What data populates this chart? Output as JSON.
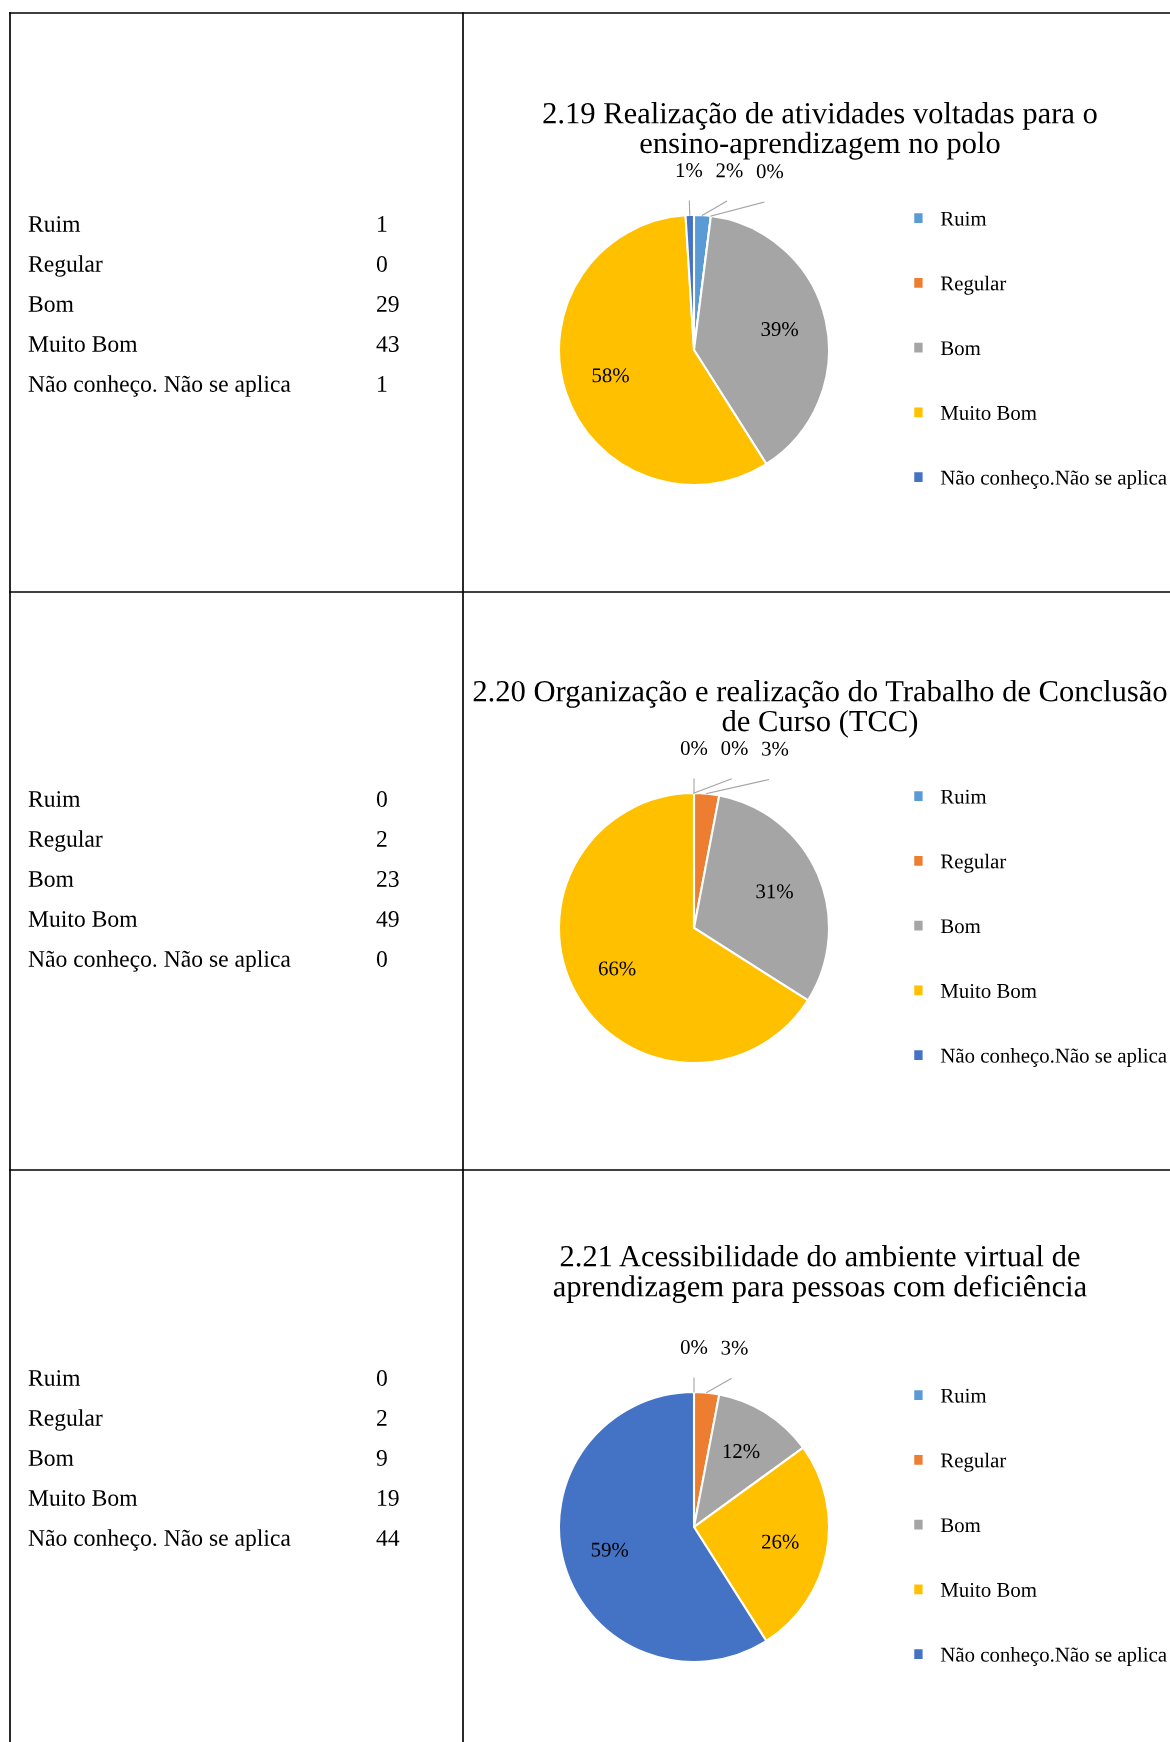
{
  "chart_data": [
    {
      "type": "pie",
      "title": "2.19 Realização de atividades voltadas para o ensino-aprendizagem no polo",
      "categories": [
        "Ruim",
        "Regular",
        "Bom",
        "Muito Bom",
        "Não conheço.Não se aplica"
      ],
      "values": [
        2,
        0,
        39,
        58,
        1
      ],
      "value_labels": [
        "2%",
        "0%",
        "39%",
        "58%",
        "1%"
      ],
      "colors": [
        "#5b9bd5",
        "#ed7d31",
        "#a5a5a5",
        "#ffc000",
        "#4472c4"
      ],
      "legend": "right",
      "annotations": [
        "Ruim",
        "1",
        "Regular",
        "0",
        "Bom",
        "29",
        "Muito Bom",
        "43",
        "Não conheço. Não se aplica",
        "1"
      ]
    },
    {
      "type": "pie",
      "title": "2.20 Organização e realização do Trabalho de Conclusão de Curso (TCC)",
      "categories": [
        "Ruim",
        "Regular",
        "Bom",
        "Muito Bom",
        "Não conheço.Não se aplica"
      ],
      "values": [
        0,
        3,
        31,
        66,
        0
      ],
      "value_labels": [
        "0%",
        "3%",
        "31%",
        "66%",
        "0%"
      ],
      "colors": [
        "#5b9bd5",
        "#ed7d31",
        "#a5a5a5",
        "#ffc000",
        "#4472c4"
      ],
      "legend": "right",
      "annotations": [
        "Ruim",
        "0",
        "Regular",
        "2",
        "Bom",
        "23",
        "Muito Bom",
        "49",
        "Não conheço. Não se aplica",
        "0"
      ]
    },
    {
      "type": "pie",
      "title": "2.21 Acessibilidade do ambiente virtual de aprendizagem para pessoas com deficiência",
      "categories": [
        "Ruim",
        "Regular",
        "Bom",
        "Muito Bom",
        "Não conheço.Não se aplica"
      ],
      "values": [
        0,
        3,
        12,
        26,
        59
      ],
      "value_labels": [
        "0%",
        "3%",
        "12%",
        "26%",
        "59%"
      ],
      "colors": [
        "#5b9bd5",
        "#ed7d31",
        "#a5a5a5",
        "#ffc000",
        "#4472c4"
      ],
      "legend": "right",
      "annotations": [
        "Ruim",
        "0",
        "Regular",
        "2",
        "Bom",
        "9",
        "Muito Bom",
        "19",
        "Não conheço. Não se aplica",
        "44"
      ]
    }
  ]
}
